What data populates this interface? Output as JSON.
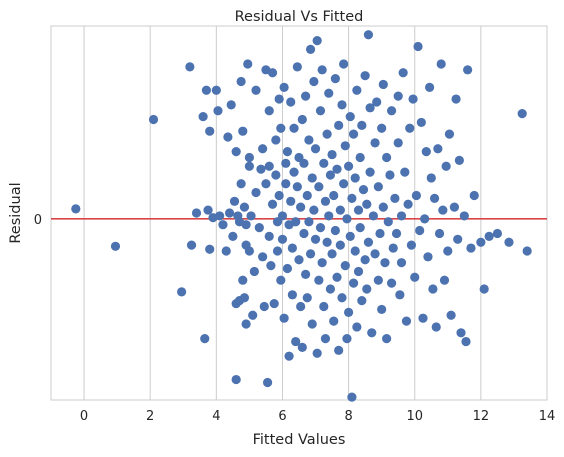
{
  "chart_data": {
    "type": "scatter",
    "title": "Residual Vs Fitted",
    "xlabel": "Fitted Values",
    "ylabel": "Residual",
    "xlim": [
      -1,
      14
    ],
    "ylim": [
      -3.1,
      3.3
    ],
    "xticks": [
      0,
      2,
      4,
      6,
      8,
      10,
      12,
      14
    ],
    "yticks": [
      0
    ],
    "grid": "x",
    "reference_line": {
      "y": 0,
      "color": "#d9464a"
    },
    "marker_color": "#4c72b0",
    "points": [
      {
        "x": -0.25,
        "y": 0.17
      },
      {
        "x": 0.95,
        "y": -0.47
      },
      {
        "x": 2.1,
        "y": 1.7
      },
      {
        "x": 2.95,
        "y": -1.25
      },
      {
        "x": 3.2,
        "y": 2.6
      },
      {
        "x": 3.25,
        "y": -0.45
      },
      {
        "x": 3.4,
        "y": 0.1
      },
      {
        "x": 3.6,
        "y": 1.75
      },
      {
        "x": 3.65,
        "y": -2.05
      },
      {
        "x": 3.7,
        "y": 2.2
      },
      {
        "x": 3.75,
        "y": 0.15
      },
      {
        "x": 3.8,
        "y": -0.52
      },
      {
        "x": 3.8,
        "y": 1.5
      },
      {
        "x": 3.9,
        "y": 0.02
      },
      {
        "x": 4.0,
        "y": 2.2
      },
      {
        "x": 4.05,
        "y": 1.85
      },
      {
        "x": 4.1,
        "y": 0.05
      },
      {
        "x": 4.2,
        "y": -0.1
      },
      {
        "x": 4.3,
        "y": -0.55
      },
      {
        "x": 4.35,
        "y": 1.4
      },
      {
        "x": 4.4,
        "y": 0.1
      },
      {
        "x": 4.45,
        "y": 1.95
      },
      {
        "x": 4.5,
        "y": -0.3
      },
      {
        "x": 4.55,
        "y": 0.3
      },
      {
        "x": 4.6,
        "y": -1.45
      },
      {
        "x": 4.6,
        "y": 1.15
      },
      {
        "x": 4.6,
        "y": -2.75
      },
      {
        "x": 4.65,
        "y": 0.05
      },
      {
        "x": 4.7,
        "y": -1.4
      },
      {
        "x": 4.7,
        "y": -0.05
      },
      {
        "x": 4.75,
        "y": 2.35
      },
      {
        "x": 4.75,
        "y": 0.6
      },
      {
        "x": 4.8,
        "y": -1.05
      },
      {
        "x": 4.8,
        "y": 1.5
      },
      {
        "x": 4.85,
        "y": -1.35
      },
      {
        "x": 4.85,
        "y": 0.2
      },
      {
        "x": 4.9,
        "y": -0.1
      },
      {
        "x": 4.9,
        "y": -0.45
      },
      {
        "x": 4.9,
        "y": -1.8
      },
      {
        "x": 4.95,
        "y": 2.65
      },
      {
        "x": 5.0,
        "y": 1.05
      },
      {
        "x": 5.0,
        "y": -0.55
      },
      {
        "x": 5.0,
        "y": 0.9
      },
      {
        "x": 5.05,
        "y": 0.05
      },
      {
        "x": 5.1,
        "y": -1.65
      },
      {
        "x": 5.15,
        "y": -0.9
      },
      {
        "x": 5.2,
        "y": 2.2
      },
      {
        "x": 5.2,
        "y": 0.45
      },
      {
        "x": 5.3,
        "y": -0.15
      },
      {
        "x": 5.35,
        "y": 0.85
      },
      {
        "x": 5.4,
        "y": -0.65
      },
      {
        "x": 5.4,
        "y": 1.2
      },
      {
        "x": 5.45,
        "y": -1.5
      },
      {
        "x": 5.5,
        "y": 2.55
      },
      {
        "x": 5.5,
        "y": 0.6
      },
      {
        "x": 5.55,
        "y": -2.8
      },
      {
        "x": 5.6,
        "y": -0.3
      },
      {
        "x": 5.6,
        "y": 0.9
      },
      {
        "x": 5.6,
        "y": 1.85
      },
      {
        "x": 5.65,
        "y": -0.8
      },
      {
        "x": 5.7,
        "y": 2.5
      },
      {
        "x": 5.7,
        "y": 0.25
      },
      {
        "x": 5.75,
        "y": -1.45
      },
      {
        "x": 5.8,
        "y": 0.75
      },
      {
        "x": 5.8,
        "y": 1.35
      },
      {
        "x": 5.85,
        "y": -0.55
      },
      {
        "x": 5.85,
        "y": -0.05
      },
      {
        "x": 5.9,
        "y": 2.05
      },
      {
        "x": 5.9,
        "y": 0.4
      },
      {
        "x": 5.95,
        "y": -1.05
      },
      {
        "x": 5.95,
        "y": 1.55
      },
      {
        "x": 6.0,
        "y": 0.05
      },
      {
        "x": 6.0,
        "y": -0.35
      },
      {
        "x": 6.05,
        "y": 2.25
      },
      {
        "x": 6.05,
        "y": -1.7
      },
      {
        "x": 6.1,
        "y": 0.95
      },
      {
        "x": 6.1,
        "y": 0.6
      },
      {
        "x": 6.15,
        "y": -0.85
      },
      {
        "x": 6.15,
        "y": 1.15
      },
      {
        "x": 6.2,
        "y": -0.1
      },
      {
        "x": 6.2,
        "y": -2.35
      },
      {
        "x": 6.25,
        "y": 2.0
      },
      {
        "x": 6.25,
        "y": 0.3
      },
      {
        "x": 6.3,
        "y": -1.3
      },
      {
        "x": 6.3,
        "y": -0.5
      },
      {
        "x": 6.35,
        "y": 0.8
      },
      {
        "x": 6.35,
        "y": 1.55
      },
      {
        "x": 6.4,
        "y": -2.1
      },
      {
        "x": 6.4,
        "y": -0.05
      },
      {
        "x": 6.45,
        "y": 2.6
      },
      {
        "x": 6.45,
        "y": 0.55
      },
      {
        "x": 6.5,
        "y": -0.7
      },
      {
        "x": 6.5,
        "y": 1.05
      },
      {
        "x": 6.55,
        "y": -1.5
      },
      {
        "x": 6.55,
        "y": 0.2
      },
      {
        "x": 6.6,
        "y": -2.2
      },
      {
        "x": 6.6,
        "y": 1.7
      },
      {
        "x": 6.65,
        "y": -0.25
      },
      {
        "x": 6.65,
        "y": 0.95
      },
      {
        "x": 6.7,
        "y": 2.1
      },
      {
        "x": 6.7,
        "y": -0.95
      },
      {
        "x": 6.75,
        "y": 0.4
      },
      {
        "x": 6.75,
        "y": -1.35
      },
      {
        "x": 6.8,
        "y": 1.35
      },
      {
        "x": 6.8,
        "y": -0.05
      },
      {
        "x": 6.85,
        "y": 2.9
      },
      {
        "x": 6.85,
        "y": -0.6
      },
      {
        "x": 6.9,
        "y": 0.7
      },
      {
        "x": 6.9,
        "y": -1.8
      },
      {
        "x": 6.95,
        "y": 2.35
      },
      {
        "x": 6.95,
        "y": 0.15
      },
      {
        "x": 7.0,
        "y": -0.35
      },
      {
        "x": 7.0,
        "y": 1.2
      },
      {
        "x": 7.05,
        "y": -2.3
      },
      {
        "x": 7.05,
        "y": 3.05
      },
      {
        "x": 7.1,
        "y": 0.55
      },
      {
        "x": 7.1,
        "y": -1.05
      },
      {
        "x": 7.15,
        "y": 1.85
      },
      {
        "x": 7.15,
        "y": -0.15
      },
      {
        "x": 7.2,
        "y": 2.55
      },
      {
        "x": 7.2,
        "y": -0.75
      },
      {
        "x": 7.25,
        "y": 0.95
      },
      {
        "x": 7.25,
        "y": -1.5
      },
      {
        "x": 7.3,
        "y": 0.3
      },
      {
        "x": 7.3,
        "y": -2.05
      },
      {
        "x": 7.35,
        "y": 1.45
      },
      {
        "x": 7.35,
        "y": -0.4
      },
      {
        "x": 7.4,
        "y": 2.15
      },
      {
        "x": 7.4,
        "y": 0.05
      },
      {
        "x": 7.45,
        "y": -1.2
      },
      {
        "x": 7.45,
        "y": 0.75
      },
      {
        "x": 7.5,
        "y": -0.6
      },
      {
        "x": 7.5,
        "y": 1.1
      },
      {
        "x": 7.55,
        "y": -1.75
      },
      {
        "x": 7.55,
        "y": 0.4
      },
      {
        "x": 7.6,
        "y": 2.4
      },
      {
        "x": 7.6,
        "y": -0.2
      },
      {
        "x": 7.65,
        "y": 0.85
      },
      {
        "x": 7.65,
        "y": -1.0
      },
      {
        "x": 7.7,
        "y": 1.6
      },
      {
        "x": 7.7,
        "y": -2.25
      },
      {
        "x": 7.75,
        "y": 0.15
      },
      {
        "x": 7.75,
        "y": -0.45
      },
      {
        "x": 7.8,
        "y": 1.95
      },
      {
        "x": 7.8,
        "y": -1.35
      },
      {
        "x": 7.85,
        "y": 0.6
      },
      {
        "x": 7.85,
        "y": 2.65
      },
      {
        "x": 7.9,
        "y": -0.8
      },
      {
        "x": 7.9,
        "y": 1.25
      },
      {
        "x": 7.95,
        "y": -2.05
      },
      {
        "x": 7.95,
        "y": 0.0
      },
      {
        "x": 8.0,
        "y": 0.9
      },
      {
        "x": 8.0,
        "y": -1.6
      },
      {
        "x": 8.05,
        "y": 1.75
      },
      {
        "x": 8.05,
        "y": -0.3
      },
      {
        "x": 8.1,
        "y": -3.05
      },
      {
        "x": 8.1,
        "y": 0.35
      },
      {
        "x": 8.15,
        "y": -1.1
      },
      {
        "x": 8.15,
        "y": 1.45
      },
      {
        "x": 8.2,
        "y": -0.55
      },
      {
        "x": 8.2,
        "y": 0.7
      },
      {
        "x": 8.25,
        "y": 2.2
      },
      {
        "x": 8.25,
        "y": -1.85
      },
      {
        "x": 8.3,
        "y": 0.15
      },
      {
        "x": 8.3,
        "y": -0.9
      },
      {
        "x": 8.35,
        "y": 1.05
      },
      {
        "x": 8.35,
        "y": -0.15
      },
      {
        "x": 8.4,
        "y": 1.6
      },
      {
        "x": 8.4,
        "y": -1.4
      },
      {
        "x": 8.45,
        "y": 0.5
      },
      {
        "x": 8.5,
        "y": -0.7
      },
      {
        "x": 8.5,
        "y": 2.45
      },
      {
        "x": 8.55,
        "y": -1.2
      },
      {
        "x": 8.55,
        "y": 0.25
      },
      {
        "x": 8.6,
        "y": 3.15
      },
      {
        "x": 8.6,
        "y": -0.4
      },
      {
        "x": 8.65,
        "y": 1.9
      },
      {
        "x": 8.65,
        "y": 0.8
      },
      {
        "x": 8.7,
        "y": -1.95
      },
      {
        "x": 8.75,
        "y": 0.05
      },
      {
        "x": 8.8,
        "y": 1.3
      },
      {
        "x": 8.8,
        "y": -0.6
      },
      {
        "x": 8.85,
        "y": 2.0
      },
      {
        "x": 8.9,
        "y": -1.05
      },
      {
        "x": 8.9,
        "y": 0.55
      },
      {
        "x": 8.95,
        "y": -0.25
      },
      {
        "x": 9.0,
        "y": 1.55
      },
      {
        "x": 9.0,
        "y": -1.55
      },
      {
        "x": 9.05,
        "y": 0.2
      },
      {
        "x": 9.05,
        "y": 2.3
      },
      {
        "x": 9.1,
        "y": -0.75
      },
      {
        "x": 9.15,
        "y": 1.05
      },
      {
        "x": 9.15,
        "y": -2.05
      },
      {
        "x": 9.2,
        "y": -0.05
      },
      {
        "x": 9.25,
        "y": 0.75
      },
      {
        "x": 9.3,
        "y": -1.1
      },
      {
        "x": 9.3,
        "y": 1.85
      },
      {
        "x": 9.35,
        "y": -0.5
      },
      {
        "x": 9.4,
        "y": 0.35
      },
      {
        "x": 9.45,
        "y": -0.25
      },
      {
        "x": 9.5,
        "y": 2.1
      },
      {
        "x": 9.5,
        "y": 1.3
      },
      {
        "x": 9.55,
        "y": -1.3
      },
      {
        "x": 9.6,
        "y": 0.05
      },
      {
        "x": 9.6,
        "y": -0.75
      },
      {
        "x": 9.65,
        "y": 2.5
      },
      {
        "x": 9.7,
        "y": 0.8
      },
      {
        "x": 9.75,
        "y": -1.75
      },
      {
        "x": 9.8,
        "y": 0.25
      },
      {
        "x": 9.85,
        "y": 1.55
      },
      {
        "x": 9.9,
        "y": -0.45
      },
      {
        "x": 9.95,
        "y": 2.05
      },
      {
        "x": 10.0,
        "y": -1.0
      },
      {
        "x": 10.05,
        "y": 0.4
      },
      {
        "x": 10.1,
        "y": 2.95
      },
      {
        "x": 10.15,
        "y": -0.2
      },
      {
        "x": 10.2,
        "y": 1.65
      },
      {
        "x": 10.25,
        "y": -1.7
      },
      {
        "x": 10.3,
        "y": 0.0
      },
      {
        "x": 10.35,
        "y": 1.15
      },
      {
        "x": 10.4,
        "y": -0.65
      },
      {
        "x": 10.45,
        "y": 2.25
      },
      {
        "x": 10.5,
        "y": 0.7
      },
      {
        "x": 10.55,
        "y": -1.2
      },
      {
        "x": 10.6,
        "y": 0.35
      },
      {
        "x": 10.65,
        "y": -1.85
      },
      {
        "x": 10.7,
        "y": 1.2
      },
      {
        "x": 10.75,
        "y": -0.25
      },
      {
        "x": 10.8,
        "y": 2.65
      },
      {
        "x": 10.85,
        "y": 0.15
      },
      {
        "x": 10.9,
        "y": -1.05
      },
      {
        "x": 10.95,
        "y": 0.9
      },
      {
        "x": 11.0,
        "y": -0.55
      },
      {
        "x": 11.05,
        "y": 1.45
      },
      {
        "x": 11.1,
        "y": -1.65
      },
      {
        "x": 11.2,
        "y": 0.2
      },
      {
        "x": 11.25,
        "y": 2.05
      },
      {
        "x": 11.3,
        "y": -0.35
      },
      {
        "x": 11.35,
        "y": 1.0
      },
      {
        "x": 11.4,
        "y": -1.95
      },
      {
        "x": 11.5,
        "y": 0.05
      },
      {
        "x": 11.55,
        "y": -2.1
      },
      {
        "x": 11.6,
        "y": 2.55
      },
      {
        "x": 11.7,
        "y": -0.5
      },
      {
        "x": 11.8,
        "y": 0.4
      },
      {
        "x": 12.0,
        "y": -0.4
      },
      {
        "x": 12.1,
        "y": -1.2
      },
      {
        "x": 12.25,
        "y": -0.3
      },
      {
        "x": 12.5,
        "y": -0.25
      },
      {
        "x": 12.85,
        "y": -0.4
      },
      {
        "x": 13.25,
        "y": 1.8
      },
      {
        "x": 13.4,
        "y": -0.55
      }
    ]
  }
}
